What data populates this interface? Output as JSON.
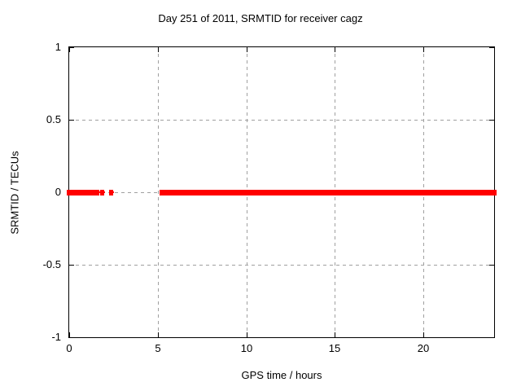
{
  "chart_data": {
    "type": "scatter",
    "title": "Day 251 of 2011, SRMTID for receiver cagz",
    "xlabel": "GPS time / hours",
    "ylabel": "SRMTID / TECUs",
    "xlim": [
      0,
      24
    ],
    "ylim": [
      -1,
      1
    ],
    "grid": true,
    "legend_position": "none",
    "marker": "filled-square",
    "colors": {
      "data": "#ff0000",
      "grid": "#a0a0a0",
      "frame": "#000000",
      "background": "#ffffff",
      "text": "#000000"
    },
    "xticks": [
      {
        "label": "0",
        "value": 0
      },
      {
        "label": "5",
        "value": 5
      },
      {
        "label": "10",
        "value": 10
      },
      {
        "label": "15",
        "value": 15
      },
      {
        "label": "20",
        "value": 20
      }
    ],
    "yticks": [
      {
        "label": "1",
        "value": 1
      },
      {
        "label": "0.5",
        "value": 0.5
      },
      {
        "label": "0",
        "value": 0
      },
      {
        "label": "-0.5",
        "value": -0.5
      },
      {
        "label": "-1",
        "value": -1
      }
    ],
    "series": [
      {
        "name": "SRMTID",
        "y_value": 0,
        "segments": [
          {
            "x_start": 0.0,
            "x_end": 1.57,
            "style": "dense"
          },
          {
            "x_start": 1.71,
            "x_end": 2.03,
            "style": "sparse"
          },
          {
            "x_start": 2.23,
            "x_end": 2.53,
            "style": "sparse"
          },
          {
            "x_start": 5.25,
            "x_end": 24.0,
            "style": "dense"
          }
        ]
      }
    ]
  }
}
